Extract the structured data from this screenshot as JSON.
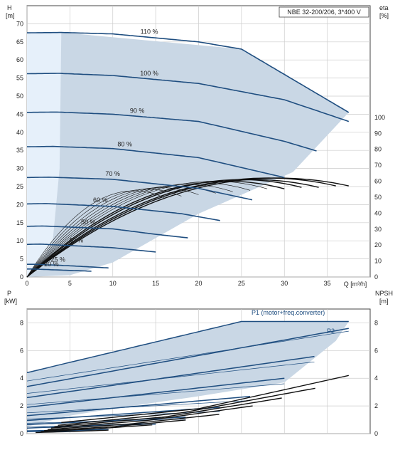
{
  "colors": {
    "envelope": "#c9d7e5",
    "lowflow": "#e6f0fa",
    "curve": "#1f4e80",
    "eta": "#111111",
    "grid": "#cccccc",
    "axis": "#444444",
    "text": "#222222"
  },
  "chart_data": [
    {
      "type": "line",
      "title": "NBE 32-200/206, 3*400 V",
      "xlabel": "Q [m³/h]",
      "ylabel_left_top": "H",
      "ylabel_left_unit": "[m]",
      "ylabel_right_top": "eta",
      "ylabel_right_unit": "[%]",
      "xlim": [
        0,
        40
      ],
      "ylim": [
        0,
        75
      ],
      "y2lim": [
        0,
        170
      ],
      "xticks": [
        0,
        5,
        10,
        15,
        20,
        25,
        30,
        35
      ],
      "yticks": [
        0,
        5,
        10,
        15,
        20,
        25,
        30,
        35,
        40,
        45,
        50,
        55,
        60,
        65,
        70
      ],
      "y2ticks": [
        0,
        10,
        20,
        30,
        40,
        50,
        60,
        70,
        80,
        90,
        100
      ],
      "grid": true,
      "envelope": [
        [
          0,
          0
        ],
        [
          0,
          67.5
        ],
        [
          4,
          67.6
        ],
        [
          25,
          63
        ],
        [
          37.5,
          45.5
        ],
        [
          31,
          29
        ],
        [
          20,
          17.5
        ],
        [
          10,
          4
        ],
        [
          5,
          0.5
        ],
        [
          0,
          0
        ]
      ],
      "lowflow_region": [
        [
          0,
          0
        ],
        [
          0,
          67.5
        ],
        [
          4,
          67.6
        ],
        [
          3.8,
          30
        ],
        [
          3,
          10
        ],
        [
          1.5,
          3
        ],
        [
          0,
          0
        ]
      ],
      "series": [
        {
          "name": "110 %",
          "speed": 1.1,
          "q": [
            0,
            4,
            10,
            20,
            25,
            37.5
          ],
          "h": [
            67.5,
            67.6,
            67.2,
            65,
            63,
            45.5
          ]
        },
        {
          "name": "100 %",
          "speed": 1.0,
          "q": [
            0,
            3.7,
            10,
            20,
            30,
            37.5
          ],
          "h": [
            56.2,
            56.3,
            55.7,
            53.5,
            49,
            43
          ]
        },
        {
          "name": "90 %",
          "speed": 0.9,
          "q": [
            0,
            3.4,
            10,
            20,
            30,
            33.8
          ],
          "h": [
            45.5,
            45.6,
            45,
            43,
            37.5,
            34.8
          ]
        },
        {
          "name": "80 %",
          "speed": 0.8,
          "q": [
            0,
            3,
            10,
            20,
            30
          ],
          "h": [
            36,
            36.1,
            35.5,
            33,
            27.5
          ]
        },
        {
          "name": "70 %",
          "speed": 0.7,
          "q": [
            0,
            2.6,
            10,
            20,
            26.3
          ],
          "h": [
            27.5,
            27.6,
            27,
            24.5,
            21.3
          ]
        },
        {
          "name": "60 %",
          "speed": 0.6,
          "q": [
            0,
            2.2,
            10,
            18,
            22.5
          ],
          "h": [
            20.2,
            20.3,
            19.5,
            17.5,
            15.6
          ]
        },
        {
          "name": "50 %",
          "speed": 0.5,
          "q": [
            0,
            1.8,
            10,
            15,
            18.8
          ],
          "h": [
            14,
            14.1,
            13.3,
            11.8,
            10.8
          ]
        },
        {
          "name": "40 %",
          "speed": 0.4,
          "q": [
            0,
            1.5,
            10,
            15
          ],
          "h": [
            9,
            9.1,
            8.1,
            6.9
          ]
        },
        {
          "name": "25 %",
          "speed": 0.25,
          "q": [
            0,
            1,
            5,
            9.5
          ],
          "h": [
            3.5,
            3.5,
            3.1,
            2.5
          ]
        },
        {
          "name": "20 %",
          "speed": 0.2,
          "q": [
            0,
            0.8,
            4,
            7.5
          ],
          "h": [
            2.2,
            2.2,
            1.9,
            1.6
          ]
        }
      ],
      "eta_curves": {
        "label": "eta",
        "peak_eta": [
          62,
          62,
          61,
          61,
          60,
          60,
          59,
          58,
          57,
          56,
          55,
          54
        ],
        "qmax": [
          37.5,
          36,
          34,
          32,
          30,
          28,
          26,
          24,
          22,
          20,
          18,
          16
        ]
      }
    },
    {
      "type": "line",
      "xlim": [
        0,
        40
      ],
      "ylim": [
        0,
        9
      ],
      "yticks": [
        0,
        2,
        4,
        6,
        8
      ],
      "ylabel_left_top": "P",
      "ylabel_left_unit": "[kW]",
      "ylabel_right_top": "NPSH",
      "ylabel_right_unit": "[m]",
      "legend_p1": "P1 (motor+freq.converter)",
      "legend_p2": "P2",
      "envelope": [
        [
          0,
          4.4
        ],
        [
          4,
          5
        ],
        [
          25,
          8.1
        ],
        [
          37.5,
          8.1
        ],
        [
          36,
          6.7
        ],
        [
          30,
          3.7
        ],
        [
          20,
          2.7
        ],
        [
          10,
          1.8
        ],
        [
          5,
          1.3
        ],
        [
          0,
          0.5
        ]
      ],
      "p1": [
        {
          "q": [
            0,
            4,
            25,
            37.5
          ],
          "p": [
            4.4,
            5,
            8.1,
            8.1
          ]
        },
        {
          "q": [
            0,
            37.5
          ],
          "p": [
            3.4,
            7.6
          ]
        },
        {
          "q": [
            0,
            33.8
          ],
          "p": [
            2.6,
            5.6
          ]
        },
        {
          "q": [
            0,
            30
          ],
          "p": [
            1.9,
            4
          ]
        },
        {
          "q": [
            0,
            26.3
          ],
          "p": [
            1.3,
            2.7
          ]
        },
        {
          "q": [
            0,
            22.5
          ],
          "p": [
            0.95,
            1.9
          ]
        },
        {
          "q": [
            0,
            18.8
          ],
          "p": [
            0.65,
            1.2
          ]
        },
        {
          "q": [
            0,
            15
          ],
          "p": [
            0.4,
            0.75
          ]
        },
        {
          "q": [
            0,
            9.5
          ],
          "p": [
            0.2,
            0.3
          ]
        },
        {
          "q": [
            0,
            7.5
          ],
          "p": [
            0.15,
            0.22
          ]
        }
      ],
      "p2": [
        {
          "q": [
            0,
            37.5
          ],
          "p": [
            3.8,
            7.4
          ]
        },
        {
          "q": [
            0,
            33.8
          ],
          "p": [
            2.9,
            5.2
          ]
        },
        {
          "q": [
            0,
            30
          ],
          "p": [
            2.1,
            3.6
          ]
        },
        {
          "q": [
            0,
            26.3
          ],
          "p": [
            1.5,
            2.4
          ]
        },
        {
          "q": [
            0,
            22.5
          ],
          "p": [
            1.05,
            1.6
          ]
        },
        {
          "q": [
            0,
            18.8
          ],
          "p": [
            0.75,
            1.05
          ]
        },
        {
          "q": [
            0,
            15
          ],
          "p": [
            0.5,
            0.65
          ]
        }
      ],
      "npsh": [
        {
          "q": [
            4,
            20,
            37.5
          ],
          "n": [
            0.8,
            1.8,
            4.2
          ]
        },
        {
          "q": [
            3.6,
            18,
            33.8
          ],
          "n": [
            0.6,
            1.5,
            3.3
          ]
        },
        {
          "q": [
            3.2,
            16,
            30
          ],
          "n": [
            0.5,
            1.2,
            2.6
          ]
        },
        {
          "q": [
            2.8,
            14,
            26.3
          ],
          "n": [
            0.4,
            0.95,
            2
          ]
        },
        {
          "q": [
            2.4,
            12,
            22.5
          ],
          "n": [
            0.3,
            0.7,
            1.4
          ]
        },
        {
          "q": [
            2,
            10,
            18.8
          ],
          "n": [
            0.22,
            0.5,
            1
          ]
        },
        {
          "q": [
            1.6,
            8,
            15
          ],
          "n": [
            0.15,
            0.35,
            0.65
          ]
        },
        {
          "q": [
            1,
            5,
            9.5
          ],
          "n": [
            0.08,
            0.15,
            0.25
          ]
        }
      ]
    }
  ]
}
